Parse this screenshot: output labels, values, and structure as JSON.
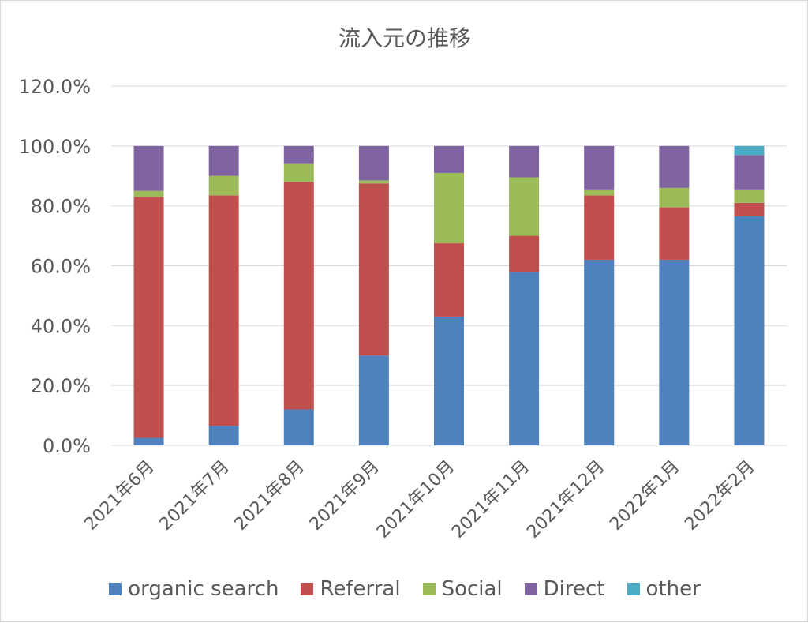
{
  "chart_data": {
    "type": "bar",
    "stacked": true,
    "title": "流入元の推移",
    "xlabel": "",
    "ylabel": "",
    "ylim": [
      0,
      1.2
    ],
    "yticks": [
      "0.0%",
      "20.0%",
      "40.0%",
      "60.0%",
      "80.0%",
      "100.0%",
      "120.0%"
    ],
    "categories": [
      "2021年6月",
      "2021年7月",
      "2021年8月",
      "2021年9月",
      "2021年10月",
      "2021年11月",
      "2021年12月",
      "2022年1月",
      "2022年2月"
    ],
    "series": [
      {
        "name": "organic search",
        "color": "#4f81bd",
        "values": [
          0.025,
          0.065,
          0.12,
          0.3,
          0.43,
          0.58,
          0.62,
          0.62,
          0.765
        ]
      },
      {
        "name": "Referral",
        "color": "#c0504d",
        "values": [
          0.805,
          0.77,
          0.76,
          0.575,
          0.245,
          0.12,
          0.215,
          0.175,
          0.045
        ]
      },
      {
        "name": "Social",
        "color": "#9bbb59",
        "values": [
          0.02,
          0.065,
          0.06,
          0.01,
          0.235,
          0.195,
          0.02,
          0.065,
          0.045
        ]
      },
      {
        "name": "Direct",
        "color": "#8064a2",
        "values": [
          0.15,
          0.1,
          0.06,
          0.115,
          0.09,
          0.105,
          0.145,
          0.14,
          0.115
        ]
      },
      {
        "name": "other",
        "color": "#4bacc6",
        "values": [
          0,
          0,
          0,
          0,
          0,
          0,
          0,
          0,
          0.03
        ]
      }
    ],
    "grid": true,
    "legend_position": "bottom"
  }
}
